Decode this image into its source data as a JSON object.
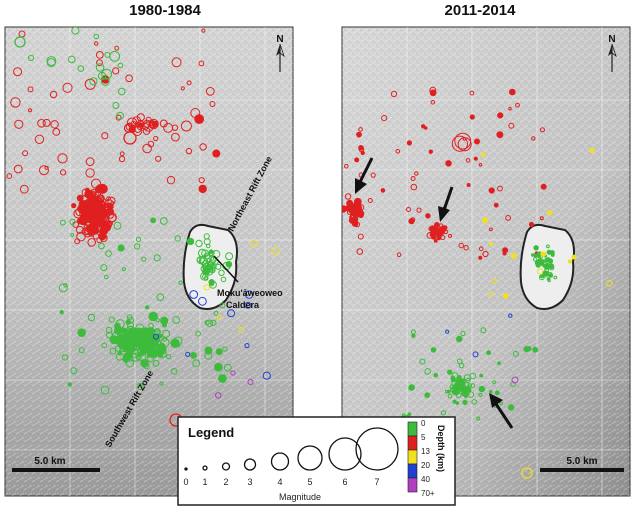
{
  "panels": [
    {
      "title": "1980-1984",
      "north": "N",
      "scale_label": "5.0 km"
    },
    {
      "title": "2011-2014",
      "north": "N",
      "scale_label": "5.0 km"
    }
  ],
  "labels": {
    "northeast_rift": "Northeast Rift Zone",
    "caldera_line1": "Moku'āweoweo",
    "caldera_line2": "Caldera",
    "southwest_rift": "Southwest Rift Zone"
  },
  "legend": {
    "title": "Legend",
    "magnitude_label": "Magnitude",
    "magnitudes": [
      "0",
      "1",
      "2",
      "3",
      "4",
      "5",
      "6",
      "7"
    ],
    "depth_title": "Depth (km)",
    "depths": [
      {
        "label": "0",
        "color": "#3dbb3d"
      },
      {
        "label": "5",
        "color": "#e02020"
      },
      {
        "label": "13",
        "color": "#f0e020"
      },
      {
        "label": "20",
        "color": "#2040d0"
      },
      {
        "label": "40",
        "color": "#b040c0"
      },
      {
        "label": "70+",
        "color": ""
      }
    ]
  },
  "colors": {
    "shallow": "#3dbb3d",
    "mid": "#e02020",
    "deep": "#f0e020",
    "deeper": "#2040d0",
    "deepest": "#b040c0"
  }
}
